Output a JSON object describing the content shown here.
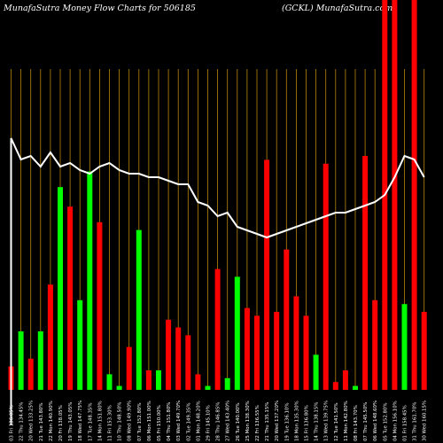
{
  "header": {
    "left": "MunafaSutra  Money Flow  Charts for 506185",
    "right": "(GCKL) MunafaSutra.com"
  },
  "colors": {
    "background": "#000000",
    "up": "#00ff00",
    "down": "#ff0000",
    "line": "#ffffff",
    "grid": "#b8860b"
  },
  "chart_data": {
    "type": "bar",
    "title": "MunafaSutra  Money Flow  Charts for 506185",
    "subtitle": "(GCKL) MunafaSutra.com",
    "categories": [
      "03 Fri 136.05%",
      "22 Thu 134.45%",
      "20 Wed 133.25%",
      "21 Tue 143.80%",
      "22 Mon 140.90%",
      "20 Fri 138.05%",
      "19 Thu 143.05%",
      "18 Wed 147.75%",
      "17 Tue 148.35%",
      "14 Mon 151.80%",
      "11 Fri 153.30%",
      "10 Thu 148.50%",
      "08 Wed 149.90%",
      "07 Tue 152.80%",
      "06 Mon 151.00%",
      "05 Fri 150.00%",
      "04 Thu 151.80%",
      "03 Wed 149.70%",
      "02 Tue 149.35%",
      "01 Mon 148.20%",
      "29 Fri 145.10%",
      "28 Thu 146.85%",
      "27 Wed 143.40%",
      "26 Tue 140.00%",
      "25 Mon 138.30%",
      "22 Fri 136.55%",
      "21 Thu 135.15%",
      "20 Wed 137.20%",
      "19 Tue 136.10%",
      "18 Mon 135.30%",
      "15 Fri 136.80%",
      "14 Thu 138.15%",
      "13 Wed 139.75%",
      "12 Tue 141.50%",
      "11 Mon 142.80%",
      "08 Fri 143.70%",
      "07 Thu 145.50%",
      "06 Wed 148.60%",
      "05 Tue 152.80%",
      "04 Mon 156.10%",
      "01 Fri 158.45%",
      "31 Thu 161.70%",
      "30 Wed 160.15%"
    ],
    "flow": [
      "down",
      "up",
      "down",
      "up",
      "down",
      "up",
      "down",
      "up",
      "up",
      "down",
      "up",
      "up",
      "down",
      "up",
      "down",
      "up",
      "down",
      "down",
      "down",
      "down",
      "up",
      "down",
      "up",
      "up",
      "down",
      "down",
      "down",
      "down",
      "down",
      "down",
      "down",
      "up",
      "down",
      "down",
      "down",
      "up",
      "down",
      "down",
      "down",
      "down",
      "up",
      "down",
      "down"
    ],
    "values": [
      6,
      15,
      8,
      15,
      27,
      52,
      47,
      23,
      56,
      43,
      4,
      1,
      11,
      41,
      5,
      5,
      18,
      16,
      14,
      4,
      1,
      31,
      3,
      29,
      21,
      19,
      59,
      20,
      36,
      24,
      19,
      9,
      58,
      2,
      5,
      1,
      60,
      23,
      100,
      100,
      22,
      100,
      20
    ],
    "line": [
      81,
      75,
      76,
      73,
      77,
      73,
      74,
      72,
      71,
      73,
      74,
      72,
      71,
      71,
      70,
      70,
      69,
      68,
      68,
      63,
      62,
      59,
      60,
      56,
      55,
      54,
      53,
      54,
      55,
      56,
      57,
      58,
      59,
      60,
      60,
      61,
      62,
      63,
      65,
      70,
      76,
      75,
      70
    ],
    "ylim": [
      0,
      100
    ],
    "grid": "vertical"
  }
}
